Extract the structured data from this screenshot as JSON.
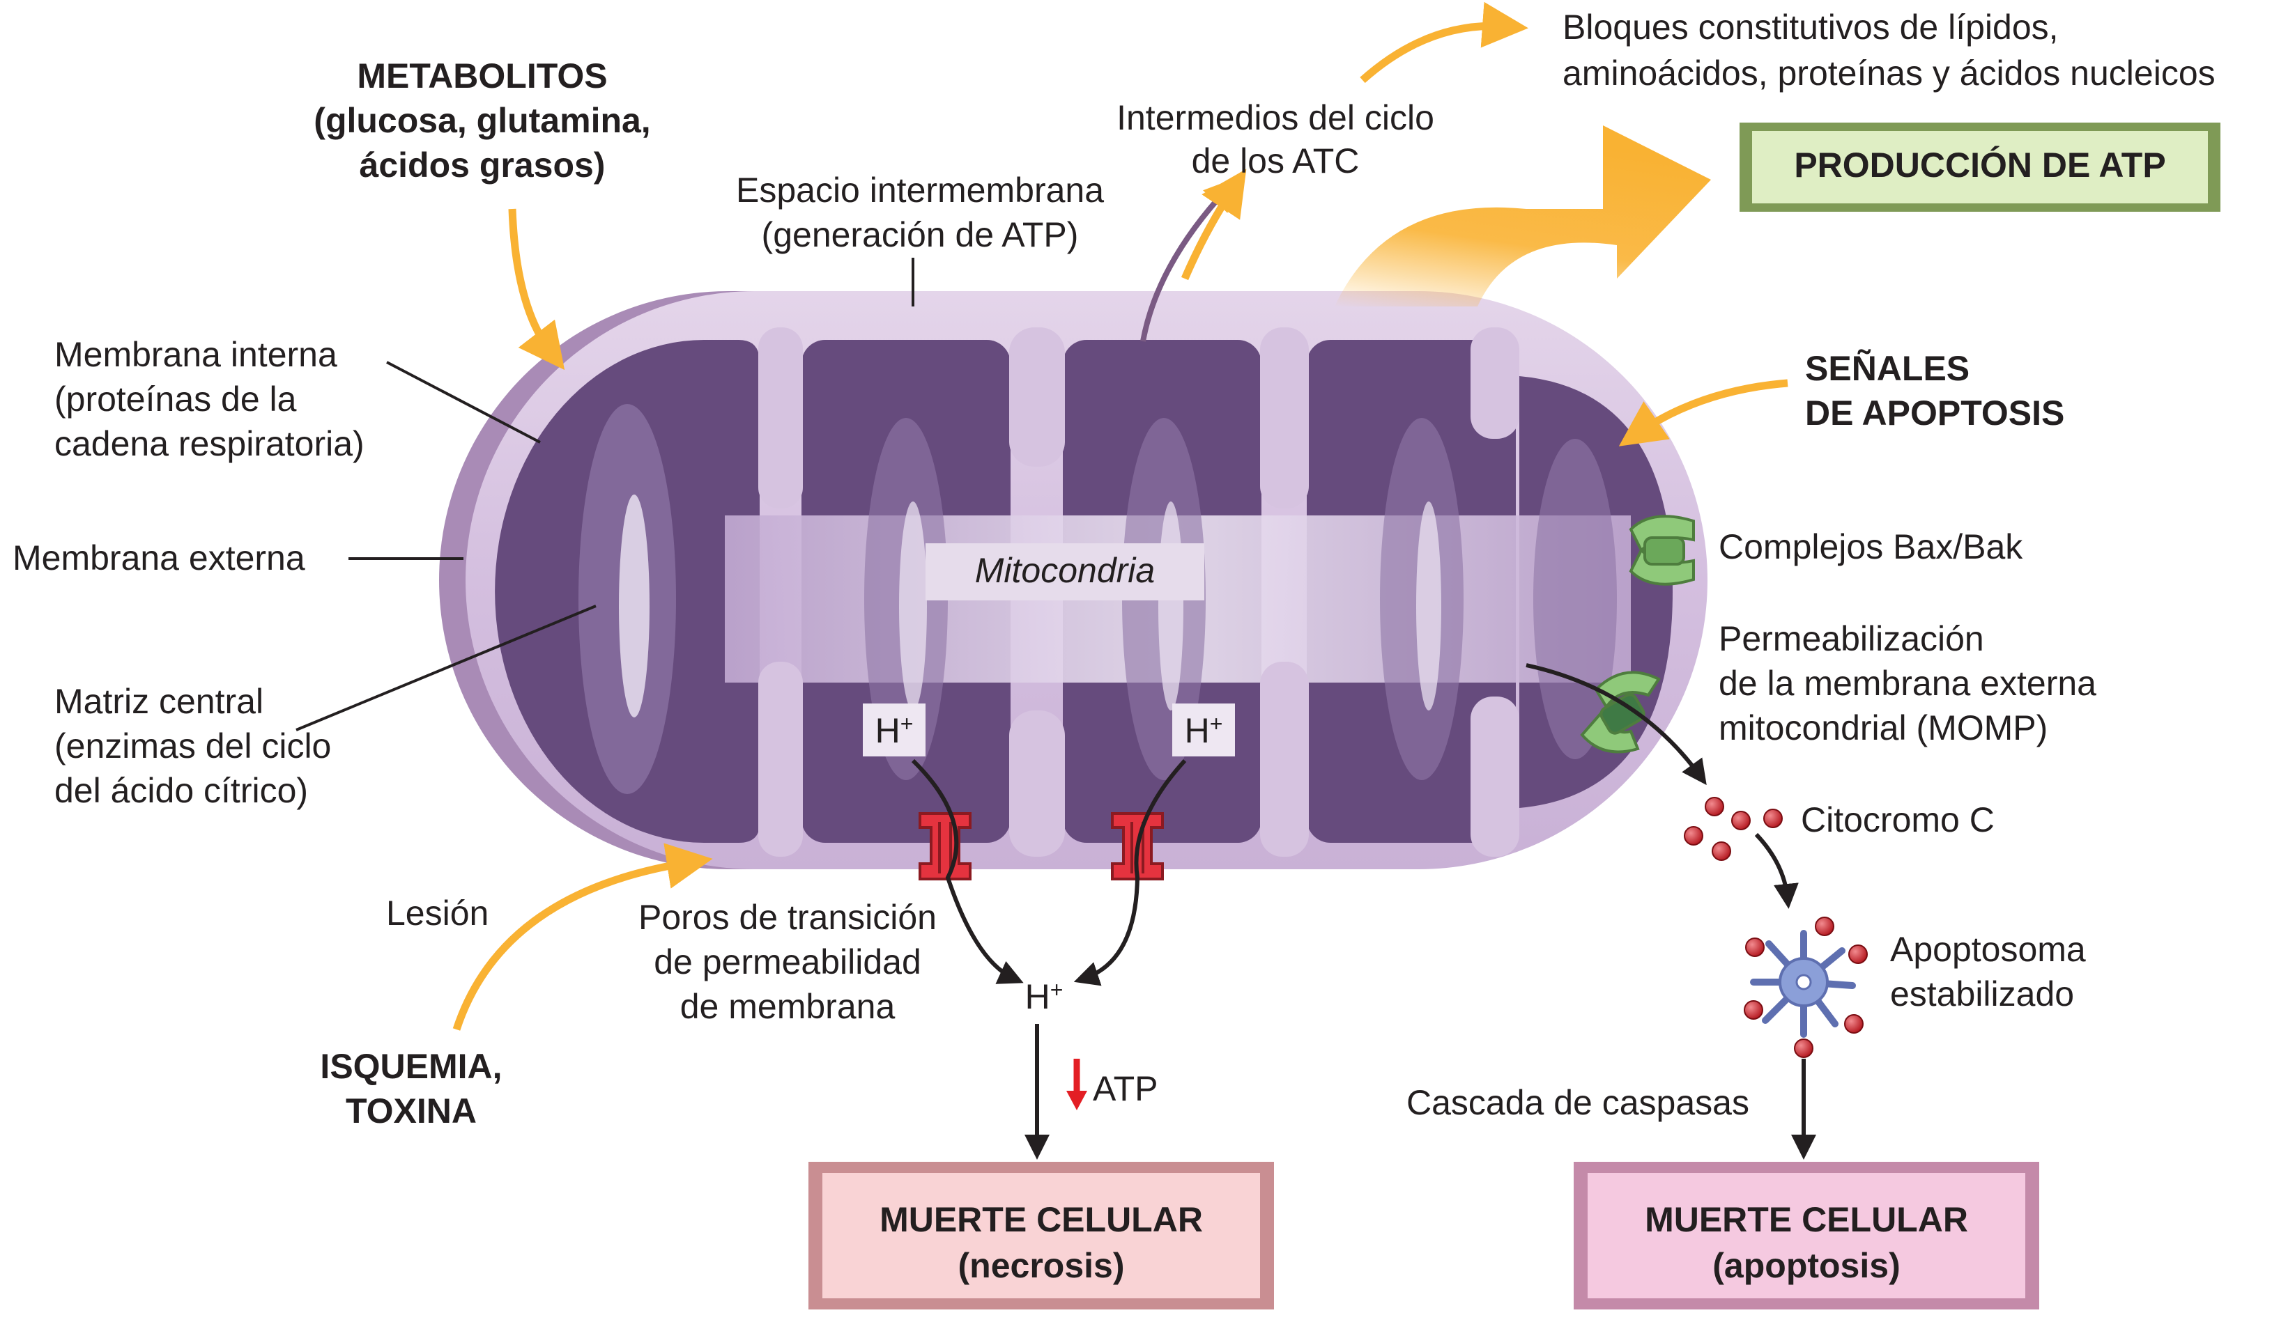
{
  "labels": {
    "metabolites": [
      "METABOLITOS",
      "(glucosa, glutamina,",
      "ácidos grasos)"
    ],
    "intermembrane_space": [
      "Espacio intermembrana",
      "(generación de ATP)"
    ],
    "tca_intermediates": [
      "Intermedios del ciclo",
      "de los ATC"
    ],
    "building_blocks": [
      "Bloques constitutivos de lípidos,",
      "aminoácidos, proteínas y ácidos nucleicos"
    ],
    "atp_production": "PRODUCCIÓN DE ATP",
    "inner_membrane": [
      "Membrana interna",
      "(proteínas de la",
      "cadena respiratoria)"
    ],
    "outer_membrane": "Membrana externa",
    "central_matrix": [
      "Matriz central",
      "(enzimas del ciclo",
      "del ácido cítrico)"
    ],
    "mitochondrion": "Mitocondria",
    "apoptosis_signals": [
      "SEÑALES",
      "DE APOPTOSIS"
    ],
    "bax_bak": "Complejos Bax/Bak",
    "momp": [
      "Permeabilización",
      "de la membrana externa",
      "mitocondrial (MOMP)"
    ],
    "cytochrome_c": "Citocromo C",
    "apoptosome": [
      "Apoptosoma",
      "estabilizado"
    ],
    "caspase_cascade": "Cascada de caspasas",
    "injury": "Lesión",
    "ischemia_toxin": [
      "ISQUEMIA,",
      "TOXINA"
    ],
    "mpt_pores": [
      "Poros de transición",
      "de permeabilidad",
      "de membrana"
    ],
    "proton_left": "H+",
    "proton_right": "H+",
    "proton_released": "H+",
    "atp_decrease": "ATP",
    "necrosis_box": [
      "MUERTE CELULAR",
      "(necrosis)"
    ],
    "apoptosis_box": [
      "MUERTE CELULAR",
      "(apoptosis)"
    ]
  },
  "colors": {
    "outer_membrane": "#d9c6e2",
    "outer_membrane_edge": "#9f82ac",
    "matrix": "#6a4f80",
    "matrix_highlight": "#e7dcef",
    "orange_arrow": "#f9b233",
    "atp_box_fill": "#dfeec4",
    "atp_box_edge": "#7f9a56",
    "necrosis_box_fill": "#f9d3d5",
    "necrosis_box_edge": "#c98e92",
    "apoptosis_box_fill": "#f5c9e0",
    "apoptosis_box_edge": "#c48aa9",
    "pore": "#e5333f",
    "bax_bak": "#8fc97a",
    "cytochrome": "#d1262f",
    "apoptosome": "#8b9fd8",
    "down_arrow": "#e31e24"
  }
}
